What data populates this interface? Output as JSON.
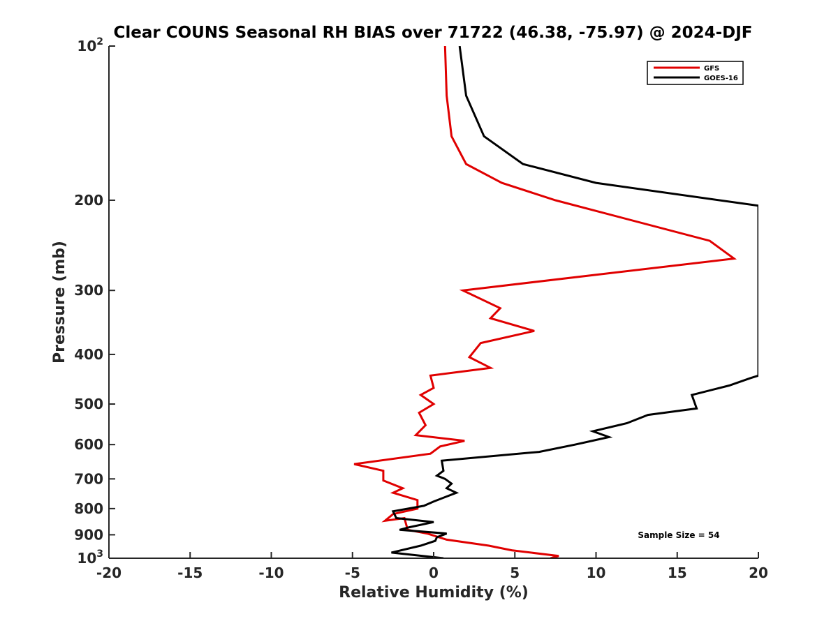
{
  "chart_data": {
    "type": "line",
    "title": "Clear COUNS Seasonal RH BIAS over 71722 (46.38, -75.97) @ 2024-DJF",
    "xlabel": "Relative Humidity (%)",
    "ylabel": "Pressure (mb)",
    "xlim": [
      -20,
      20
    ],
    "ylim": [
      100,
      1000
    ],
    "y_scale": "log",
    "y_reversed": true,
    "grid": false,
    "legend_position": "top-right",
    "x_ticks": [
      -20,
      -15,
      -10,
      -5,
      0,
      5,
      10,
      15,
      20
    ],
    "x_tick_labels": [
      "-20",
      "-15",
      "-10",
      "-5",
      "0",
      "5",
      "10",
      "15",
      "20"
    ],
    "y_ticks": [
      100,
      200,
      300,
      400,
      500,
      600,
      700,
      800,
      900,
      1000
    ],
    "y_tick_labels": [
      {
        "base": "10",
        "sup": "2"
      },
      {
        "text": "200"
      },
      {
        "text": "300"
      },
      {
        "text": "400"
      },
      {
        "text": "500"
      },
      {
        "text": "600"
      },
      {
        "text": "700"
      },
      {
        "text": "800"
      },
      {
        "text": "900"
      },
      {
        "base": "10",
        "sup": "3"
      }
    ],
    "annotation": "Sample Size = 54",
    "series": [
      {
        "name": "GFS",
        "color": "#e00000",
        "points": [
          [
            0.7,
            100
          ],
          [
            0.8,
            125
          ],
          [
            1.1,
            150
          ],
          [
            2.0,
            170
          ],
          [
            4.2,
            185
          ],
          [
            7.5,
            200
          ],
          [
            17.0,
            240
          ],
          [
            18.5,
            260
          ],
          [
            1.8,
            300
          ],
          [
            4.1,
            325
          ],
          [
            3.5,
            340
          ],
          [
            6.2,
            360
          ],
          [
            2.9,
            380
          ],
          [
            2.2,
            405
          ],
          [
            3.5,
            425
          ],
          [
            -0.2,
            440
          ],
          [
            0.0,
            465
          ],
          [
            -0.8,
            480
          ],
          [
            0.0,
            500
          ],
          [
            -0.9,
            520
          ],
          [
            -0.5,
            550
          ],
          [
            -1.1,
            575
          ],
          [
            1.9,
            590
          ],
          [
            0.4,
            605
          ],
          [
            -0.2,
            625
          ],
          [
            -4.9,
            655
          ],
          [
            -3.1,
            675
          ],
          [
            -3.1,
            705
          ],
          [
            -1.9,
            730
          ],
          [
            -2.5,
            745
          ],
          [
            -1.0,
            770
          ],
          [
            -1.0,
            800
          ],
          [
            -2.5,
            820
          ],
          [
            -3.0,
            845
          ],
          [
            -1.8,
            835
          ],
          [
            -1.6,
            880
          ],
          [
            -0.4,
            895
          ],
          [
            0.8,
            920
          ],
          [
            3.4,
            945
          ],
          [
            4.8,
            965
          ],
          [
            7.7,
            990
          ],
          [
            7.2,
            1000
          ]
        ]
      },
      {
        "name": "GOES-16",
        "color": "#000000",
        "points": [
          [
            1.6,
            100
          ],
          [
            2.0,
            125
          ],
          [
            3.1,
            150
          ],
          [
            5.5,
            170
          ],
          [
            10.0,
            185
          ],
          [
            20.0,
            205
          ],
          [
            20.0,
            440
          ],
          [
            19.5,
            445
          ],
          [
            18.2,
            460
          ],
          [
            15.9,
            480
          ],
          [
            16.2,
            510
          ],
          [
            13.2,
            525
          ],
          [
            11.9,
            545
          ],
          [
            9.8,
            565
          ],
          [
            10.8,
            580
          ],
          [
            8.7,
            600
          ],
          [
            6.5,
            620
          ],
          [
            0.5,
            645
          ],
          [
            0.6,
            675
          ],
          [
            0.2,
            690
          ],
          [
            0.7,
            700
          ],
          [
            1.1,
            715
          ],
          [
            0.8,
            730
          ],
          [
            1.4,
            745
          ],
          [
            0.0,
            775
          ],
          [
            -0.6,
            790
          ],
          [
            -2.5,
            810
          ],
          [
            -2.3,
            835
          ],
          [
            0.0,
            850
          ],
          [
            -1.5,
            870
          ],
          [
            -2.1,
            880
          ],
          [
            0.8,
            895
          ],
          [
            0.2,
            910
          ],
          [
            0.1,
            925
          ],
          [
            -0.8,
            945
          ],
          [
            -2.6,
            975
          ],
          [
            0.6,
            1000
          ]
        ]
      }
    ]
  }
}
